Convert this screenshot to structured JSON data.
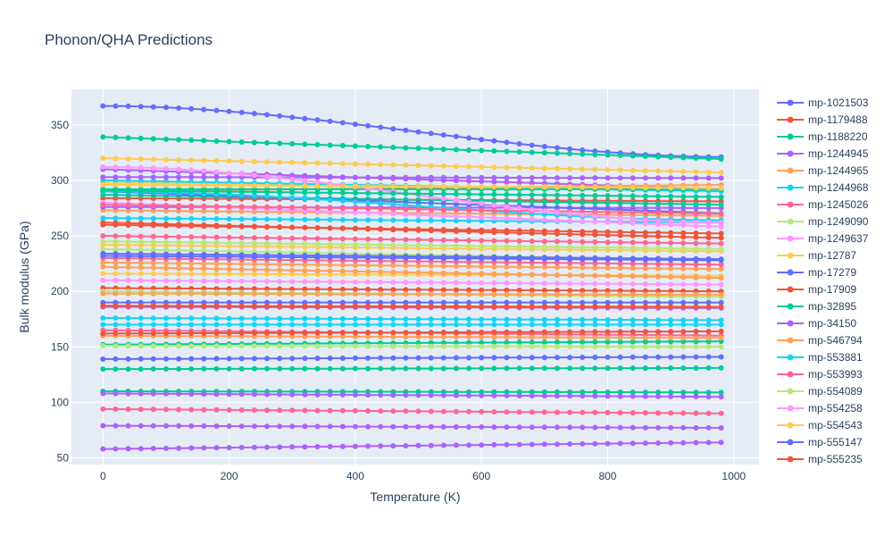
{
  "chart_data": {
    "type": "scatter",
    "mode": "lines+markers",
    "title": "Phonon/QHA Predictions",
    "xlabel": "Temperature (K)",
    "ylabel": "Bulk modulus (GPa)",
    "xlim": [
      -50,
      1040
    ],
    "ylim": [
      44,
      382
    ],
    "xticks": [
      0,
      200,
      400,
      600,
      800,
      1000
    ],
    "yticks": [
      50,
      100,
      150,
      200,
      250,
      300,
      350
    ],
    "grid": true,
    "legend_position": "right",
    "x": {
      "start": 0,
      "stop": 990,
      "step": 20
    },
    "series": [
      {
        "name": "mp-1021503",
        "color": "#636efa",
        "y_start": 367,
        "y_end": 321,
        "shape": "sigmoid"
      },
      {
        "name": "mp-1179488",
        "color": "#EF553B",
        "y_start": 260,
        "y_end": 252,
        "shape": "linear"
      },
      {
        "name": "mp-1188220",
        "color": "#00cc96",
        "y_start": 339,
        "y_end": 319,
        "shape": "linear"
      },
      {
        "name": "mp-1244945",
        "color": "#ab63fa",
        "y_start": 303,
        "y_end": 302,
        "shape": "linear"
      },
      {
        "name": "mp-1244965",
        "color": "#FFA15A",
        "y_start": 222,
        "y_end": 212,
        "shape": "linear"
      },
      {
        "name": "mp-1244968",
        "color": "#19d3f3",
        "y_start": 290,
        "y_end": 264,
        "shape": "sigmoid"
      },
      {
        "name": "mp-1245026",
        "color": "#FF6692",
        "y_start": 278,
        "y_end": 270,
        "shape": "linear"
      },
      {
        "name": "mp-1249090",
        "color": "#B6E880",
        "y_start": 245,
        "y_end": 238,
        "shape": "linear"
      },
      {
        "name": "mp-1249637",
        "color": "#FF97FF",
        "y_start": 312,
        "y_end": 262,
        "shape": "sigmoid"
      },
      {
        "name": "mp-12787",
        "color": "#FECB52",
        "y_start": 320,
        "y_end": 307,
        "shape": "linear"
      },
      {
        "name": "mp-17279",
        "color": "#636efa",
        "y_start": 232,
        "y_end": 228,
        "shape": "linear"
      },
      {
        "name": "mp-17909",
        "color": "#EF553B",
        "y_start": 187,
        "y_end": 186,
        "shape": "linear"
      },
      {
        "name": "mp-32895",
        "color": "#00cc96",
        "y_start": 291,
        "y_end": 285,
        "shape": "linear"
      },
      {
        "name": "mp-34150",
        "color": "#ab63fa",
        "y_start": 58,
        "y_end": 64,
        "shape": "linear"
      },
      {
        "name": "mp-546794",
        "color": "#FFA15A",
        "y_start": 198,
        "y_end": 197,
        "shape": "linear"
      },
      {
        "name": "mp-553881",
        "color": "#19d3f3",
        "y_start": 176,
        "y_end": 174,
        "shape": "linear"
      },
      {
        "name": "mp-553993",
        "color": "#FF6692",
        "y_start": 94,
        "y_end": 90,
        "shape": "linear"
      },
      {
        "name": "mp-554089",
        "color": "#B6E880",
        "y_start": 151,
        "y_end": 150,
        "shape": "linear"
      },
      {
        "name": "mp-554258",
        "color": "#FF97FF",
        "y_start": 210,
        "y_end": 206,
        "shape": "linear"
      },
      {
        "name": "mp-554543",
        "color": "#FECB52",
        "y_start": 296,
        "y_end": 293,
        "shape": "linear"
      },
      {
        "name": "mp-555147",
        "color": "#636efa",
        "y_start": 139,
        "y_end": 141,
        "shape": "linear"
      },
      {
        "name": "mp-555235",
        "color": "#EF553B",
        "y_start": 162,
        "y_end": 164,
        "shape": "linear"
      }
    ],
    "extra_traces": [
      {
        "color": "#00cc96",
        "y_start": 130,
        "y_end": 131
      },
      {
        "color": "#00cc96",
        "y_start": 110,
        "y_end": 109
      },
      {
        "color": "#ab63fa",
        "y_start": 108,
        "y_end": 105
      },
      {
        "color": "#ab63fa",
        "y_start": 79,
        "y_end": 77
      },
      {
        "color": "#ab63fa",
        "y_start": 186,
        "y_end": 185
      },
      {
        "color": "#00cc96",
        "y_start": 152,
        "y_end": 155
      },
      {
        "color": "#19d3f3",
        "y_start": 170,
        "y_end": 170
      },
      {
        "color": "#FF6692",
        "y_start": 165,
        "y_end": 160
      },
      {
        "color": "#FFA15A",
        "y_start": 160,
        "y_end": 158
      },
      {
        "color": "#636efa",
        "y_start": 190,
        "y_end": 190
      },
      {
        "color": "#EF553B",
        "y_start": 203,
        "y_end": 200
      },
      {
        "color": "#FECB52",
        "y_start": 216,
        "y_end": 214
      },
      {
        "color": "#FFA15A",
        "y_start": 226,
        "y_end": 220
      },
      {
        "color": "#B6E880",
        "y_start": 238,
        "y_end": 228
      },
      {
        "color": "#FF6692",
        "y_start": 250,
        "y_end": 243
      },
      {
        "color": "#EF553B",
        "y_start": 262,
        "y_end": 248
      },
      {
        "color": "#19d3f3",
        "y_start": 266,
        "y_end": 262
      },
      {
        "color": "#FFA15A",
        "y_start": 273,
        "y_end": 268
      },
      {
        "color": "#ab63fa",
        "y_start": 276,
        "y_end": 275
      },
      {
        "color": "#EF553B",
        "y_start": 284,
        "y_end": 281
      },
      {
        "color": "#00cc96",
        "y_start": 287,
        "y_end": 278
      },
      {
        "color": "#FECB52",
        "y_start": 298,
        "y_end": 291
      },
      {
        "color": "#19d3f3",
        "y_start": 300,
        "y_end": 290
      },
      {
        "color": "#ab63fa",
        "y_start": 310,
        "y_end": 292
      },
      {
        "color": "#FF97FF",
        "y_start": 280,
        "y_end": 258
      },
      {
        "color": "#FECB52",
        "y_start": 242,
        "y_end": 236
      },
      {
        "color": "#B6E880",
        "y_start": 200,
        "y_end": 195
      },
      {
        "color": "#FF6692",
        "y_start": 230,
        "y_end": 224
      },
      {
        "color": "#636efa",
        "y_start": 234,
        "y_end": 229
      },
      {
        "color": "#FFA15A",
        "y_start": 290,
        "y_end": 296
      },
      {
        "color": "#00cc96",
        "y_start": 292,
        "y_end": 292
      },
      {
        "color": "#636efa",
        "y_start": 290,
        "y_end": 270
      }
    ]
  }
}
